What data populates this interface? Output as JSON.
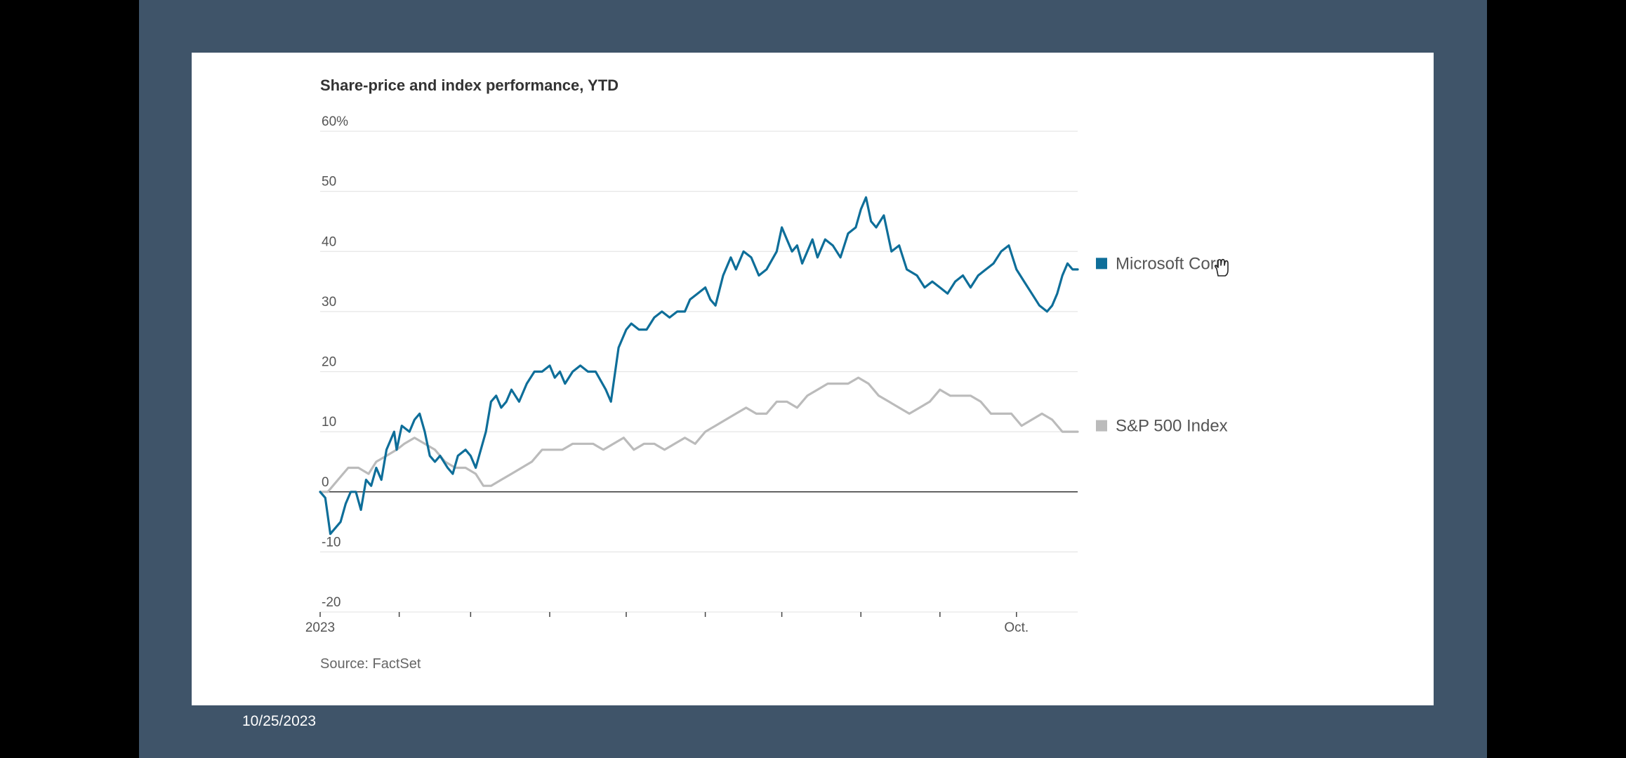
{
  "slide": {
    "date": "10/25/2023",
    "colors": {
      "background": "#3f5469",
      "outer": "#000000",
      "card": "#ffffff"
    }
  },
  "chart_data": {
    "type": "line",
    "title": "Share-price and index performance, YTD",
    "source": "Source: FactSet",
    "y_unit": "%",
    "ylim": [
      -20,
      60
    ],
    "y_ticks": [
      {
        "value": 60,
        "label": "60%"
      },
      {
        "value": 50,
        "label": "50"
      },
      {
        "value": 40,
        "label": "40"
      },
      {
        "value": 30,
        "label": "30"
      },
      {
        "value": 20,
        "label": "20"
      },
      {
        "value": 10,
        "label": "10"
      },
      {
        "value": 0,
        "label": "0"
      },
      {
        "value": -10,
        "label": "-10"
      },
      {
        "value": -20,
        "label": "-20"
      }
    ],
    "x_domain": [
      "2023-01-01",
      "2023-10-25"
    ],
    "x_ticks": [
      {
        "date": "2023-01-01",
        "label": "2023"
      },
      {
        "date": "2023-02-01",
        "label": ""
      },
      {
        "date": "2023-03-01",
        "label": ""
      },
      {
        "date": "2023-04-01",
        "label": ""
      },
      {
        "date": "2023-05-01",
        "label": ""
      },
      {
        "date": "2023-06-01",
        "label": ""
      },
      {
        "date": "2023-07-01",
        "label": ""
      },
      {
        "date": "2023-08-01",
        "label": ""
      },
      {
        "date": "2023-09-01",
        "label": ""
      },
      {
        "date": "2023-10-01",
        "label": "Oct."
      }
    ],
    "grid": true,
    "legend": "right, at line ends",
    "series": [
      {
        "name": "Microsoft Corp.",
        "color": "#0e6e99",
        "points": [
          [
            "2023-01-01",
            0
          ],
          [
            "2023-01-03",
            -1
          ],
          [
            "2023-01-05",
            -7
          ],
          [
            "2023-01-09",
            -5
          ],
          [
            "2023-01-11",
            -2
          ],
          [
            "2023-01-13",
            0
          ],
          [
            "2023-01-15",
            0
          ],
          [
            "2023-01-17",
            -3
          ],
          [
            "2023-01-19",
            2
          ],
          [
            "2023-01-21",
            1
          ],
          [
            "2023-01-23",
            4
          ],
          [
            "2023-01-25",
            2
          ],
          [
            "2023-01-27",
            7
          ],
          [
            "2023-01-30",
            10
          ],
          [
            "2023-01-31",
            7
          ],
          [
            "2023-02-02",
            11
          ],
          [
            "2023-02-05",
            10
          ],
          [
            "2023-02-07",
            12
          ],
          [
            "2023-02-09",
            13
          ],
          [
            "2023-02-11",
            10
          ],
          [
            "2023-02-13",
            6
          ],
          [
            "2023-02-15",
            5
          ],
          [
            "2023-02-17",
            6
          ],
          [
            "2023-02-20",
            4
          ],
          [
            "2023-02-22",
            3
          ],
          [
            "2023-02-24",
            6
          ],
          [
            "2023-02-27",
            7
          ],
          [
            "2023-03-01",
            6
          ],
          [
            "2023-03-03",
            4
          ],
          [
            "2023-03-07",
            10
          ],
          [
            "2023-03-09",
            15
          ],
          [
            "2023-03-11",
            16
          ],
          [
            "2023-03-13",
            14
          ],
          [
            "2023-03-15",
            15
          ],
          [
            "2023-03-17",
            17
          ],
          [
            "2023-03-20",
            15
          ],
          [
            "2023-03-23",
            18
          ],
          [
            "2023-03-26",
            20
          ],
          [
            "2023-03-29",
            20
          ],
          [
            "2023-04-01",
            21
          ],
          [
            "2023-04-03",
            19
          ],
          [
            "2023-04-05",
            20
          ],
          [
            "2023-04-07",
            18
          ],
          [
            "2023-04-10",
            20
          ],
          [
            "2023-04-13",
            21
          ],
          [
            "2023-04-16",
            20
          ],
          [
            "2023-04-19",
            20
          ],
          [
            "2023-04-23",
            17
          ],
          [
            "2023-04-25",
            15
          ],
          [
            "2023-04-28",
            24
          ],
          [
            "2023-05-01",
            27
          ],
          [
            "2023-05-03",
            28
          ],
          [
            "2023-05-06",
            27
          ],
          [
            "2023-05-09",
            27
          ],
          [
            "2023-05-12",
            29
          ],
          [
            "2023-05-15",
            30
          ],
          [
            "2023-05-18",
            29
          ],
          [
            "2023-05-21",
            30
          ],
          [
            "2023-05-24",
            30
          ],
          [
            "2023-05-26",
            32
          ],
          [
            "2023-05-29",
            33
          ],
          [
            "2023-06-01",
            34
          ],
          [
            "2023-06-03",
            32
          ],
          [
            "2023-06-05",
            31
          ],
          [
            "2023-06-08",
            36
          ],
          [
            "2023-06-11",
            39
          ],
          [
            "2023-06-13",
            37
          ],
          [
            "2023-06-16",
            40
          ],
          [
            "2023-06-19",
            39
          ],
          [
            "2023-06-22",
            36
          ],
          [
            "2023-06-25",
            37
          ],
          [
            "2023-06-29",
            40
          ],
          [
            "2023-07-01",
            44
          ],
          [
            "2023-07-03",
            42
          ],
          [
            "2023-07-05",
            40
          ],
          [
            "2023-07-07",
            41
          ],
          [
            "2023-07-09",
            38
          ],
          [
            "2023-07-11",
            40
          ],
          [
            "2023-07-13",
            42
          ],
          [
            "2023-07-15",
            39
          ],
          [
            "2023-07-18",
            42
          ],
          [
            "2023-07-21",
            41
          ],
          [
            "2023-07-24",
            39
          ],
          [
            "2023-07-27",
            43
          ],
          [
            "2023-07-30",
            44
          ],
          [
            "2023-08-01",
            47
          ],
          [
            "2023-08-03",
            49
          ],
          [
            "2023-08-05",
            45
          ],
          [
            "2023-08-07",
            44
          ],
          [
            "2023-08-10",
            46
          ],
          [
            "2023-08-13",
            40
          ],
          [
            "2023-08-16",
            41
          ],
          [
            "2023-08-19",
            37
          ],
          [
            "2023-08-23",
            36
          ],
          [
            "2023-08-26",
            34
          ],
          [
            "2023-08-29",
            35
          ],
          [
            "2023-09-01",
            34
          ],
          [
            "2023-09-04",
            33
          ],
          [
            "2023-09-07",
            35
          ],
          [
            "2023-09-10",
            36
          ],
          [
            "2023-09-13",
            34
          ],
          [
            "2023-09-16",
            36
          ],
          [
            "2023-09-19",
            37
          ],
          [
            "2023-09-22",
            38
          ],
          [
            "2023-09-25",
            40
          ],
          [
            "2023-09-28",
            41
          ],
          [
            "2023-10-01",
            37
          ],
          [
            "2023-10-04",
            35
          ],
          [
            "2023-10-07",
            33
          ],
          [
            "2023-10-10",
            31
          ],
          [
            "2023-10-13",
            30
          ],
          [
            "2023-10-15",
            31
          ],
          [
            "2023-10-17",
            33
          ],
          [
            "2023-10-19",
            36
          ],
          [
            "2023-10-21",
            38
          ],
          [
            "2023-10-23",
            37
          ],
          [
            "2023-10-25",
            37
          ]
        ]
      },
      {
        "name": "S&P 500 Index",
        "color": "#bbbbbb",
        "points": [
          [
            "2023-01-01",
            0
          ],
          [
            "2023-01-04",
            0
          ],
          [
            "2023-01-08",
            2
          ],
          [
            "2023-01-12",
            4
          ],
          [
            "2023-01-16",
            4
          ],
          [
            "2023-01-20",
            3
          ],
          [
            "2023-01-23",
            5
          ],
          [
            "2023-01-27",
            6
          ],
          [
            "2023-01-31",
            7
          ],
          [
            "2023-02-03",
            8
          ],
          [
            "2023-02-07",
            9
          ],
          [
            "2023-02-11",
            8
          ],
          [
            "2023-02-15",
            7
          ],
          [
            "2023-02-19",
            5
          ],
          [
            "2023-02-23",
            4
          ],
          [
            "2023-02-27",
            4
          ],
          [
            "2023-03-03",
            3
          ],
          [
            "2023-03-06",
            1
          ],
          [
            "2023-03-09",
            1
          ],
          [
            "2023-03-13",
            2
          ],
          [
            "2023-03-17",
            3
          ],
          [
            "2023-03-21",
            4
          ],
          [
            "2023-03-25",
            5
          ],
          [
            "2023-03-29",
            7
          ],
          [
            "2023-04-02",
            7
          ],
          [
            "2023-04-06",
            7
          ],
          [
            "2023-04-10",
            8
          ],
          [
            "2023-04-14",
            8
          ],
          [
            "2023-04-18",
            8
          ],
          [
            "2023-04-22",
            7
          ],
          [
            "2023-04-26",
            8
          ],
          [
            "2023-04-30",
            9
          ],
          [
            "2023-05-04",
            7
          ],
          [
            "2023-05-08",
            8
          ],
          [
            "2023-05-12",
            8
          ],
          [
            "2023-05-16",
            7
          ],
          [
            "2023-05-20",
            8
          ],
          [
            "2023-05-24",
            9
          ],
          [
            "2023-05-28",
            8
          ],
          [
            "2023-06-01",
            10
          ],
          [
            "2023-06-05",
            11
          ],
          [
            "2023-06-09",
            12
          ],
          [
            "2023-06-13",
            13
          ],
          [
            "2023-06-17",
            14
          ],
          [
            "2023-06-21",
            13
          ],
          [
            "2023-06-25",
            13
          ],
          [
            "2023-06-29",
            15
          ],
          [
            "2023-07-03",
            15
          ],
          [
            "2023-07-07",
            14
          ],
          [
            "2023-07-11",
            16
          ],
          [
            "2023-07-15",
            17
          ],
          [
            "2023-07-19",
            18
          ],
          [
            "2023-07-23",
            18
          ],
          [
            "2023-07-27",
            18
          ],
          [
            "2023-07-31",
            19
          ],
          [
            "2023-08-04",
            18
          ],
          [
            "2023-08-08",
            16
          ],
          [
            "2023-08-12",
            15
          ],
          [
            "2023-08-16",
            14
          ],
          [
            "2023-08-20",
            13
          ],
          [
            "2023-08-24",
            14
          ],
          [
            "2023-08-28",
            15
          ],
          [
            "2023-09-01",
            17
          ],
          [
            "2023-09-05",
            16
          ],
          [
            "2023-09-09",
            16
          ],
          [
            "2023-09-13",
            16
          ],
          [
            "2023-09-17",
            15
          ],
          [
            "2023-09-21",
            13
          ],
          [
            "2023-09-25",
            13
          ],
          [
            "2023-09-29",
            13
          ],
          [
            "2023-10-03",
            11
          ],
          [
            "2023-10-07",
            12
          ],
          [
            "2023-10-11",
            13
          ],
          [
            "2023-10-15",
            12
          ],
          [
            "2023-10-19",
            10
          ],
          [
            "2023-10-22",
            10
          ],
          [
            "2023-10-25",
            10
          ]
        ]
      }
    ]
  }
}
